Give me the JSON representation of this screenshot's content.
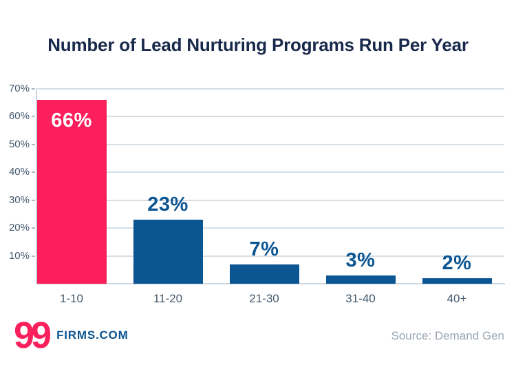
{
  "title": "Number of Lead Nurturing Programs Run Per Year",
  "chart_data": {
    "type": "bar",
    "title": "Number of Lead Nurturing Programs Run Per Year",
    "categories": [
      "1-10",
      "11-20",
      "21-30",
      "31-40",
      "40+"
    ],
    "values": [
      66,
      23,
      7,
      3,
      2
    ],
    "value_labels": [
      "66%",
      "23%",
      "7%",
      "3%",
      "2%"
    ],
    "bar_colors": [
      "#FB1F5B",
      "#0B5592",
      "#0B5592",
      "#0B5592",
      "#0B5592"
    ],
    "xlabel": "",
    "ylabel": "",
    "ylim": [
      0,
      70
    ],
    "ytick_step": 10,
    "ytick_labels": [
      "70%",
      "60%",
      "50%",
      "40%",
      "30%",
      "20%",
      "10%"
    ],
    "grid": true,
    "legend": false,
    "first_bar_label_inside": true
  },
  "footer": {
    "logo_number": "99",
    "logo_text": "FIRMS.COM",
    "source": "Source: Demand Gen"
  },
  "colors": {
    "accent_pink": "#FB1F5B",
    "bar_blue": "#0B5592",
    "title_navy": "#19294B",
    "axis_text": "#44596E",
    "grid": "#D6DFE6",
    "baseline": "#D0D9E1",
    "axis_line": "#C9D3DC",
    "tick": "#AEBBC7",
    "label_on_pink": "#FFFFFF",
    "source_gray": "#9AA5B1"
  }
}
